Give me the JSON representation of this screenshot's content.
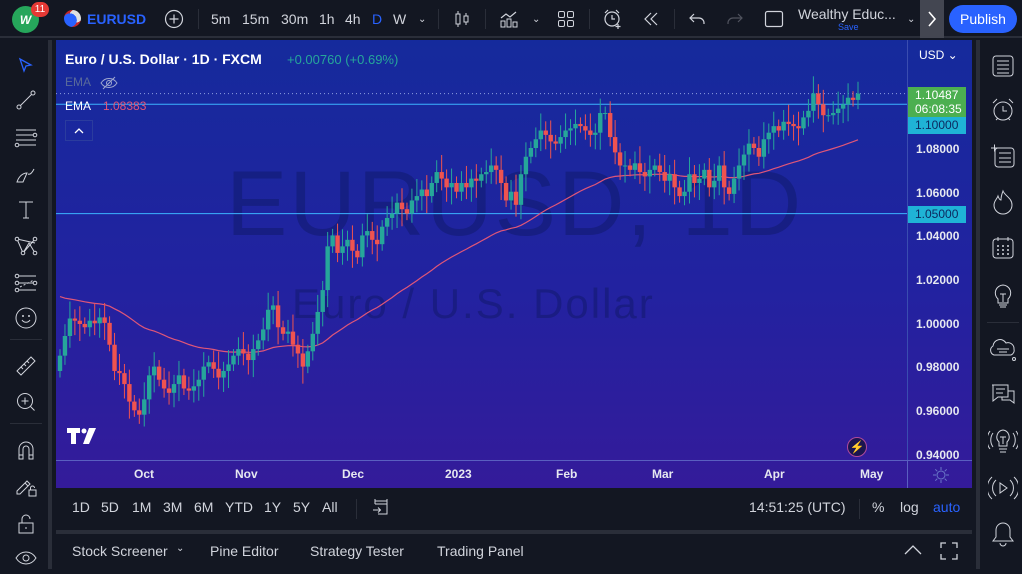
{
  "topbar": {
    "notification_count": "11",
    "symbol": "EURUSD",
    "intervals": [
      "5m",
      "15m",
      "30m",
      "1h",
      "4h",
      "D",
      "W"
    ],
    "active_interval": "D",
    "layout_name": "Wealthy Educ...",
    "layout_status": "Save",
    "publish_label": "Publish"
  },
  "legend": {
    "title": "Euro / U.S. Dollar · 1D · FXCM",
    "change": "+0.00760 (+0.69%)",
    "ema_hidden_label": "EMA",
    "ema_label": "EMA",
    "ema_value": "1.08383"
  },
  "watermark": {
    "symbol": "EURUSD, 1D",
    "description": "Euro / U.S. Dollar"
  },
  "price_scale": {
    "currency": "USD",
    "labels": [
      "1.08000",
      "1.06000",
      "1.04000",
      "1.02000",
      "1.00000",
      "0.98000",
      "0.96000",
      "0.94000"
    ],
    "current_price": "1.10487",
    "countdown": "06:08:35",
    "hline_1": "1.10000",
    "hline_2": "1.05000"
  },
  "time_scale": {
    "labels": [
      "Oct",
      "Nov",
      "Dec",
      "2023",
      "Feb",
      "Mar",
      "Apr",
      "May"
    ]
  },
  "range_bar": {
    "ranges": [
      "1D",
      "5D",
      "1M",
      "3M",
      "6M",
      "YTD",
      "1Y",
      "5Y",
      "All"
    ],
    "clock": "14:51:25 (UTC)",
    "percent": "%",
    "log": "log",
    "auto": "auto"
  },
  "bottom_panel": {
    "tabs": [
      "Stock Screener",
      "Pine Editor",
      "Strategy Tester",
      "Trading Panel"
    ]
  },
  "colors": {
    "accent": "#2962ff",
    "up": "#26a69a",
    "down": "#ef5350",
    "ema": "#e05678",
    "hline": "#3bb3ff",
    "price_tag": "#4caf50"
  },
  "chart_data": {
    "type": "candlestick",
    "title": "Euro / U.S. Dollar · 1D · FXCM",
    "ylim": [
      0.93,
      1.115
    ],
    "y_ticks": [
      0.94,
      0.96,
      0.98,
      1.0,
      1.02,
      1.04,
      1.06,
      1.08
    ],
    "x_ticks": [
      "Oct",
      "Nov",
      "Dec",
      "2023",
      "Feb",
      "Mar",
      "Apr",
      "May"
    ],
    "horizontal_lines": [
      1.1,
      1.05
    ],
    "ema_last": 1.08383,
    "last_price": 1.10487,
    "closes": [
      0.985,
      0.994,
      1.002,
      1.001,
      0.9995,
      0.998,
      1.001,
      0.9998,
      1.0025,
      1.0,
      0.99,
      0.978,
      0.977,
      0.972,
      0.964,
      0.96,
      0.958,
      0.965,
      0.976,
      0.98,
      0.974,
      0.97,
      0.968,
      0.972,
      0.976,
      0.97,
      0.969,
      0.971,
      0.974,
      0.98,
      0.982,
      0.979,
      0.975,
      0.978,
      0.981,
      0.985,
      0.988,
      0.986,
      0.983,
      0.988,
      0.992,
      0.997,
      1.006,
      1.008,
      0.998,
      0.995,
      0.996,
      0.99,
      0.986,
      0.98,
      0.987,
      0.995,
      1.005,
      1.015,
      1.035,
      1.04,
      1.032,
      1.035,
      1.038,
      1.033,
      1.03,
      1.04,
      1.042,
      1.038,
      1.036,
      1.044,
      1.048,
      1.05,
      1.055,
      1.052,
      1.05,
      1.056,
      1.058,
      1.061,
      1.058,
      1.064,
      1.069,
      1.066,
      1.062,
      1.064,
      1.06,
      1.064,
      1.062,
      1.066,
      1.065,
      1.068,
      1.069,
      1.072,
      1.07,
      1.064,
      1.056,
      1.06,
      1.054,
      1.068,
      1.076,
      1.08,
      1.084,
      1.088,
      1.086,
      1.083,
      1.082,
      1.085,
      1.088,
      1.089,
      1.091,
      1.09,
      1.088,
      1.086,
      1.087,
      1.096,
      1.096,
      1.085,
      1.078,
      1.072,
      1.072,
      1.07,
      1.073,
      1.069,
      1.067,
      1.07,
      1.072,
      1.069,
      1.065,
      1.068,
      1.062,
      1.058,
      1.06,
      1.068,
      1.064,
      1.066,
      1.07,
      1.062,
      1.065,
      1.072,
      1.062,
      1.059,
      1.066,
      1.072,
      1.077,
      1.082,
      1.08,
      1.076,
      1.084,
      1.087,
      1.09,
      1.088,
      1.092,
      1.091,
      1.09,
      1.089,
      1.094,
      1.097,
      1.105,
      1.1,
      1.095,
      1.095,
      1.096,
      1.098,
      1.1,
      1.103,
      1.102,
      1.1049
    ]
  }
}
